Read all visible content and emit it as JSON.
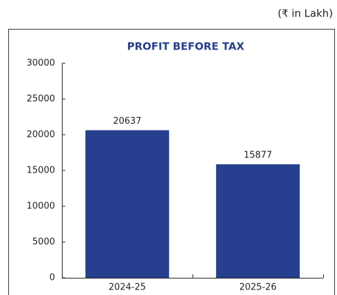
{
  "chart_data": {
    "type": "bar",
    "title": "PROFIT BEFORE TAX",
    "subtitle": "(₹ in Lakh)",
    "categories": [
      "2024-25",
      "2025-26"
    ],
    "values": [
      20637,
      15877
    ],
    "color": "#263f8e",
    "ylim": [
      0,
      30000
    ],
    "yticks": [
      0,
      5000,
      10000,
      15000,
      20000,
      25000,
      30000
    ]
  }
}
